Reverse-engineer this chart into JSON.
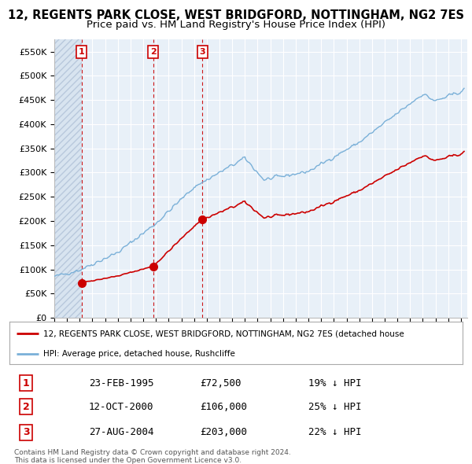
{
  "title": "12, REGENTS PARK CLOSE, WEST BRIDGFORD, NOTTINGHAM, NG2 7ES",
  "subtitle": "Price paid vs. HM Land Registry's House Price Index (HPI)",
  "xlim_start": 1993.0,
  "xlim_end": 2025.5,
  "ylim": [
    0,
    575000
  ],
  "yticks": [
    0,
    50000,
    100000,
    150000,
    200000,
    250000,
    300000,
    350000,
    400000,
    450000,
    500000,
    550000
  ],
  "ytick_labels": [
    "£0",
    "£50K",
    "£100K",
    "£150K",
    "£200K",
    "£250K",
    "£300K",
    "£350K",
    "£400K",
    "£450K",
    "£500K",
    "£550K"
  ],
  "sale_dates": [
    1995.14,
    2000.78,
    2004.65
  ],
  "sale_prices": [
    72500,
    106000,
    203000
  ],
  "sale_labels": [
    "1",
    "2",
    "3"
  ],
  "hpi_line_color": "#7ab0d8",
  "price_line_color": "#cc0000",
  "marker_color": "#cc0000",
  "dashed_line_color": "#cc0000",
  "background_plot": "#e8f0f8",
  "legend_label_red": "12, REGENTS PARK CLOSE, WEST BRIDGFORD, NOTTINGHAM, NG2 7ES (detached house",
  "legend_label_blue": "HPI: Average price, detached house, Rushcliffe",
  "table_rows": [
    [
      "1",
      "23-FEB-1995",
      "£72,500",
      "19% ↓ HPI"
    ],
    [
      "2",
      "12-OCT-2000",
      "£106,000",
      "25% ↓ HPI"
    ],
    [
      "3",
      "27-AUG-2004",
      "£203,000",
      "22% ↓ HPI"
    ]
  ],
  "footer_text": "Contains HM Land Registry data © Crown copyright and database right 2024.\nThis data is licensed under the Open Government Licence v3.0.",
  "title_fontsize": 10.5,
  "subtitle_fontsize": 9.5
}
